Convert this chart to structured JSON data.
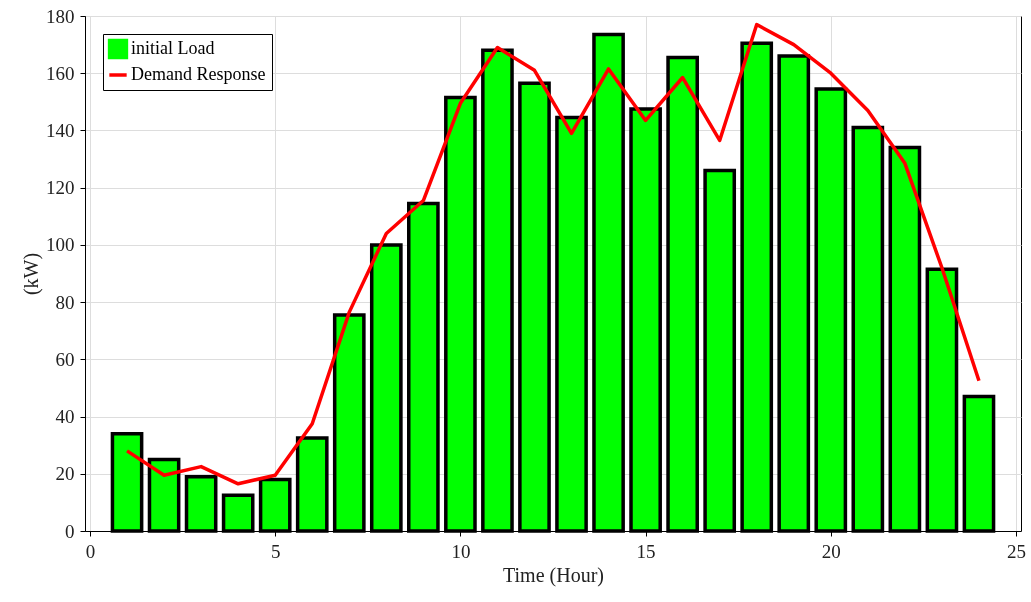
{
  "chart_data": {
    "type": "bar",
    "xlabel": "Time (Hour)",
    "ylabel": "(kW)",
    "x": [
      1,
      2,
      3,
      4,
      5,
      6,
      7,
      8,
      9,
      10,
      11,
      12,
      13,
      14,
      15,
      16,
      17,
      18,
      19,
      20,
      21,
      22,
      23,
      24
    ],
    "series": [
      {
        "name": "initial Load",
        "color": "#00ff00",
        "values": [
          34,
          25,
          19,
          12.5,
          18,
          32.5,
          75.5,
          100,
          114.5,
          151.5,
          168,
          156.5,
          144.5,
          173.5,
          147.5,
          165.5,
          126,
          170.5,
          166,
          154.5,
          141,
          134,
          91.5,
          47
        ]
      },
      {
        "name": "Demand Response",
        "type": "line",
        "color": "#ff0000",
        "values": [
          28,
          19.5,
          22.5,
          16.5,
          19.5,
          37.5,
          76.5,
          104,
          115.5,
          149.5,
          169,
          161,
          139,
          161.5,
          143.5,
          158.5,
          136.5,
          177,
          170,
          160,
          147,
          128.5,
          92,
          52.5
        ]
      }
    ],
    "xlim": [
      0,
      25
    ],
    "xticks": [
      0,
      5,
      10,
      15,
      20,
      25
    ],
    "ylim": [
      0,
      180
    ],
    "yticks": [
      0,
      20,
      40,
      60,
      80,
      100,
      120,
      140,
      160,
      180
    ],
    "grid": true,
    "legend": "top left"
  }
}
